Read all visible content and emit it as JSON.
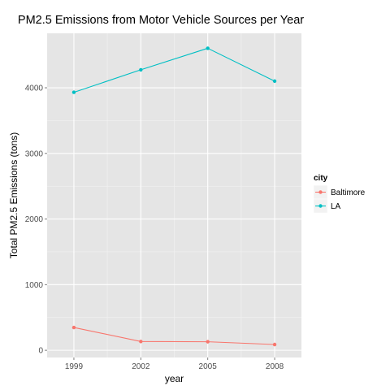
{
  "chart_data": {
    "type": "line",
    "title": "PM2.5 Emissions from Motor Vehicle Sources per Year",
    "xlabel": "year",
    "ylabel": "Total PM2.5 Emissions (tons)",
    "x": [
      1999,
      2002,
      2005,
      2008
    ],
    "xlim": [
      1997.8,
      2009.2
    ],
    "ylim": [
      -110,
      4830
    ],
    "yticks": [
      0,
      1000,
      2000,
      3000,
      4000
    ],
    "grid": true,
    "legend": {
      "title": "city",
      "position": "right"
    },
    "series": [
      {
        "name": "Baltimore",
        "color": "#F8766D",
        "values": [
          347,
          134,
          130,
          88
        ]
      },
      {
        "name": "LA",
        "color": "#00BFC4",
        "values": [
          3931,
          4274,
          4602,
          4101
        ]
      }
    ]
  }
}
